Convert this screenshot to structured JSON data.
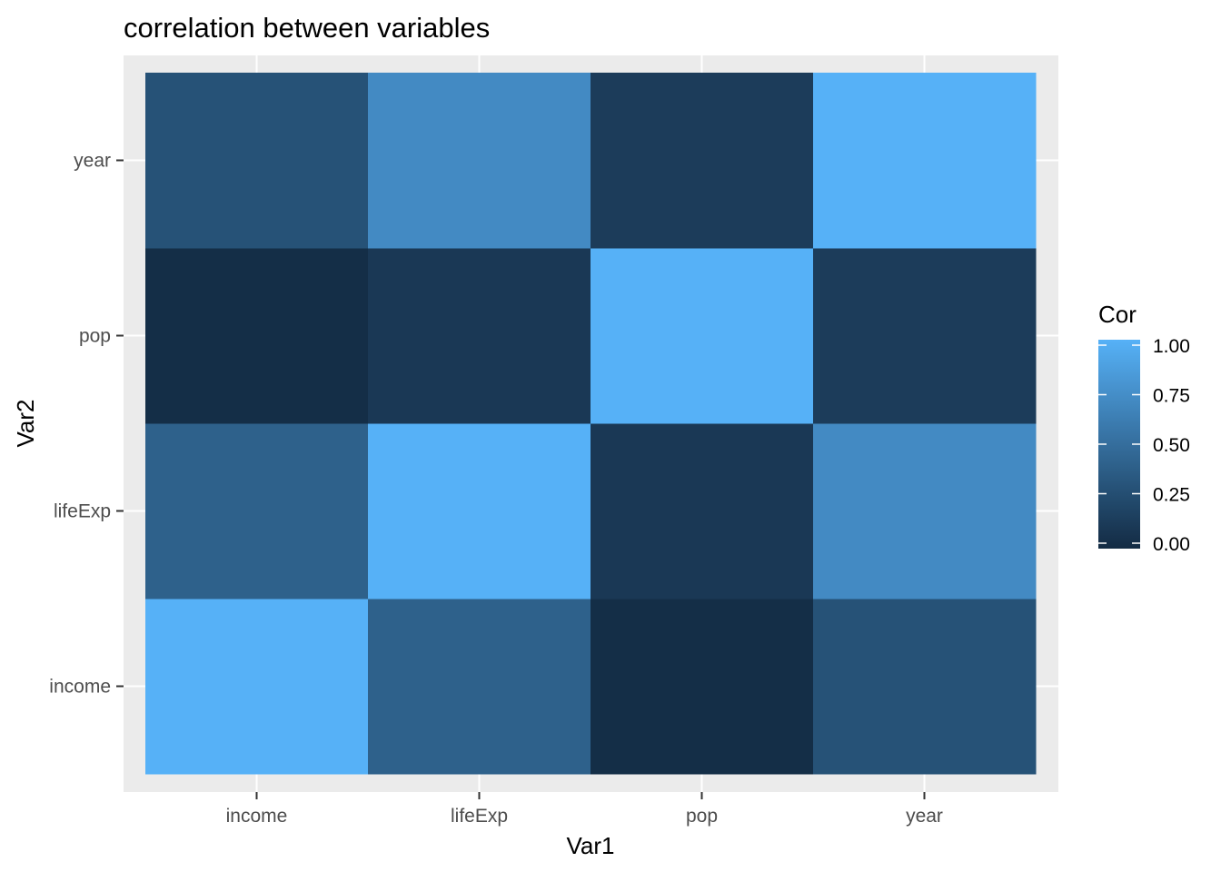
{
  "chart_data": {
    "type": "heatmap",
    "title": "correlation between variables",
    "xlabel": "Var1",
    "ylabel": "Var2",
    "x_categories": [
      "income",
      "lifeExp",
      "pop",
      "year"
    ],
    "y_categories": [
      "income",
      "lifeExp",
      "pop",
      "year"
    ],
    "matrix": [
      [
        1.0,
        0.4,
        0.02,
        0.29
      ],
      [
        0.4,
        1.0,
        0.1,
        0.71
      ],
      [
        0.02,
        0.1,
        1.0,
        0.13
      ],
      [
        0.29,
        0.71,
        0.13,
        1.0
      ]
    ],
    "legend": {
      "title": "Cor",
      "position": "right",
      "range": [
        0,
        1
      ],
      "ticks": [
        0,
        0.25,
        0.5,
        0.75,
        1
      ],
      "tick_labels": [
        "0.00",
        "0.25",
        "0.50",
        "0.75",
        "1.00"
      ],
      "low_color": "#132B43",
      "high_color": "#56B1F7"
    },
    "grid": true,
    "panel_background": "#EBEBEB"
  }
}
